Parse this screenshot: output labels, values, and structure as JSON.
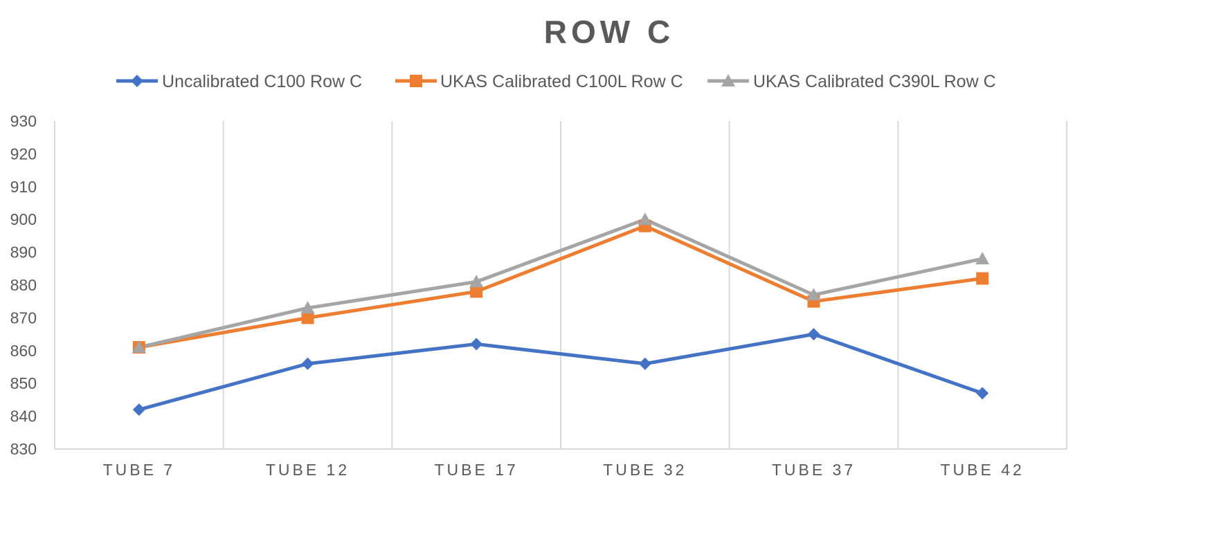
{
  "chart_data": {
    "type": "line",
    "title": "ROW C",
    "xlabel": "",
    "ylabel": "",
    "categories": [
      "TUBE 7",
      "TUBE 12",
      "TUBE 17",
      "TUBE 32",
      "TUBE 37",
      "TUBE 42"
    ],
    "ylim": [
      830,
      930
    ],
    "yticks": [
      830,
      840,
      850,
      860,
      870,
      880,
      890,
      900,
      910,
      920,
      930
    ],
    "grid": "vertical",
    "legend_position": "top",
    "series": [
      {
        "name": "Uncalibrated C100 Row C",
        "color": "#4472C4",
        "marker": "diamond",
        "values": [
          842,
          856,
          862,
          856,
          865,
          847
        ]
      },
      {
        "name": "UKAS Calibrated C100L Row C",
        "color": "#ED7D31",
        "marker": "square",
        "values": [
          861,
          870,
          878,
          898,
          875,
          882
        ]
      },
      {
        "name": "UKAS Calibrated C390L Row C",
        "color": "#A5A5A5",
        "marker": "triangle",
        "values": [
          861,
          873,
          881,
          900,
          877,
          888
        ]
      }
    ]
  }
}
